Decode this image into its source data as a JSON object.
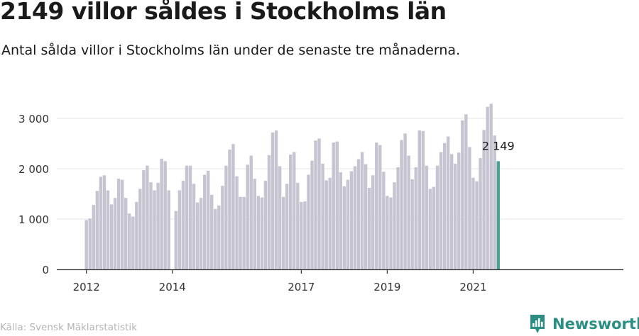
{
  "header": {
    "title": "2149 villor såldes i Stockholms län",
    "subtitle": "Antal sålda villor i Stockholms län under de senaste tre månaderna."
  },
  "footer": {
    "source": "Källa: Svensk Mäklarstatistik",
    "brand": "Newsworthy"
  },
  "colors": {
    "bar": "#c6c4d1",
    "highlight": "#48a292",
    "axis": "#333333",
    "grid": "#e4e4e4",
    "brand": "#2a8f82"
  },
  "chart_data": {
    "type": "bar",
    "title": "2149 villor såldes i Stockholms län",
    "subtitle": "Antal sålda villor i Stockholms län under de senaste tre månaderna.",
    "xlabel": "",
    "ylabel": "",
    "ylim": [
      0,
      3300
    ],
    "grid": true,
    "yticks": [
      0,
      1000,
      2000,
      3000
    ],
    "ytick_labels": [
      "0",
      "1 000",
      "2 000",
      "3 000"
    ],
    "xticks": [
      "2012",
      "2014",
      "2017",
      "2019",
      "2021"
    ],
    "x_start": "2012-01",
    "x_end": "2021-08",
    "highlight_label": "2 149",
    "values": [
      980,
      1010,
      1280,
      1560,
      1840,
      1870,
      1570,
      1290,
      1420,
      1800,
      1780,
      1420,
      1110,
      1050,
      1340,
      1600,
      1970,
      2060,
      1730,
      1570,
      1720,
      2200,
      2150,
      1570,
      null,
      1160,
      1570,
      1760,
      2060,
      2060,
      1700,
      1330,
      1420,
      1880,
      1960,
      1480,
      1200,
      1270,
      1660,
      2060,
      2380,
      2490,
      1850,
      1440,
      1440,
      2080,
      2260,
      1800,
      1460,
      1430,
      1760,
      2270,
      2720,
      2760,
      2050,
      1440,
      1700,
      2280,
      2330,
      1720,
      1340,
      1350,
      1880,
      2160,
      2560,
      2600,
      2100,
      1770,
      1820,
      2520,
      2540,
      1930,
      1650,
      1780,
      1950,
      2050,
      2190,
      2330,
      2090,
      1620,
      1870,
      2520,
      2470,
      1940,
      1460,
      1430,
      1730,
      2030,
      2570,
      2700,
      2260,
      1790,
      2030,
      2760,
      2750,
      2060,
      1600,
      1640,
      2060,
      2330,
      2510,
      2640,
      2290,
      2100,
      2320,
      2960,
      3080,
      2430,
      1820,
      1750,
      2210,
      2770,
      3230,
      3290,
      2660,
      2149
    ]
  }
}
